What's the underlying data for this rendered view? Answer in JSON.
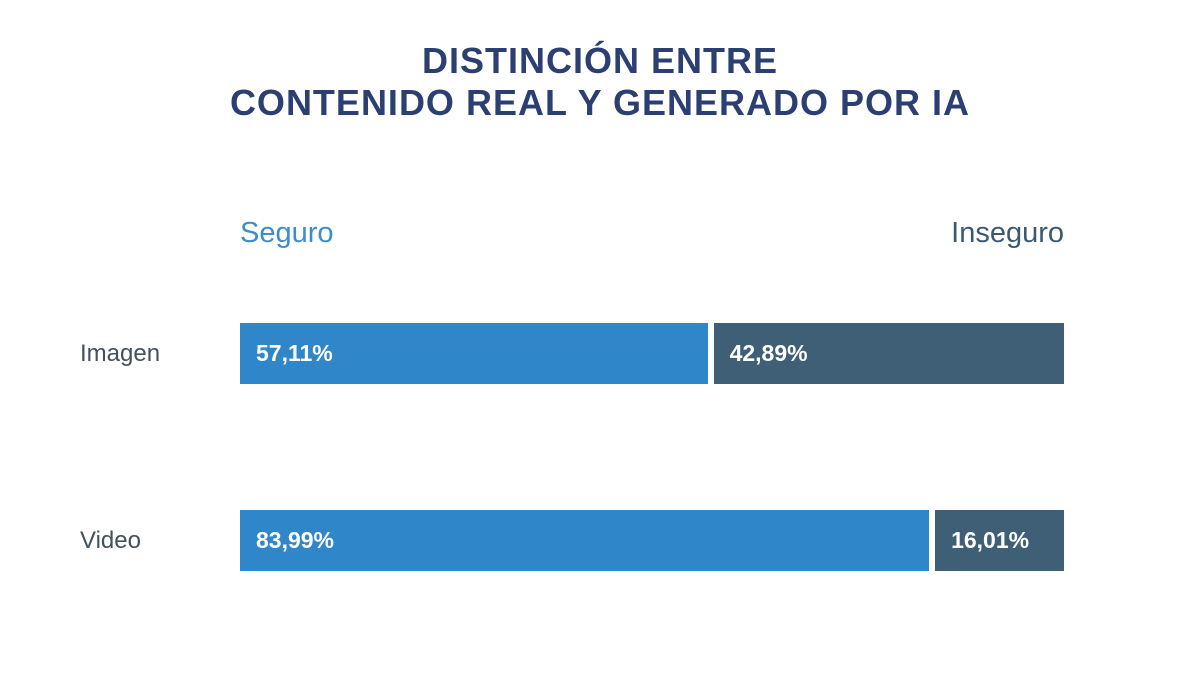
{
  "chart_data": {
    "type": "bar",
    "orientation": "horizontal",
    "stacked": true,
    "title_lines": [
      "DISTINCIÓN ENTRE",
      "CONTENIDO REAL Y GENERADO POR IA"
    ],
    "categories": [
      "Imagen",
      "Video"
    ],
    "series": [
      {
        "name": "Seguro",
        "values": [
          57.11,
          83.99
        ],
        "labels": [
          "57,11%",
          "83,99%"
        ],
        "color": "#2f86c8"
      },
      {
        "name": "Inseguro",
        "values": [
          42.89,
          16.01
        ],
        "labels": [
          "42,89%",
          "16,01%"
        ],
        "color": "#3f5f77"
      }
    ],
    "xlim": [
      0,
      100
    ],
    "legend_placement": "top",
    "grid": false
  },
  "colors": {
    "title": "#2b3f73",
    "legend_seguro_text": "#3d8ccb",
    "legend_inseguro_text": "#3b5a72",
    "category_text": "#44505e"
  }
}
